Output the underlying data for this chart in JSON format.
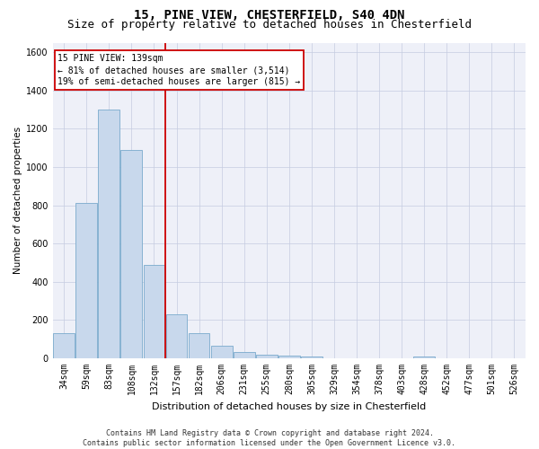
{
  "title": "15, PINE VIEW, CHESTERFIELD, S40 4DN",
  "subtitle": "Size of property relative to detached houses in Chesterfield",
  "xlabel": "Distribution of detached houses by size in Chesterfield",
  "ylabel": "Number of detached properties",
  "categories": [
    "34sqm",
    "59sqm",
    "83sqm",
    "108sqm",
    "132sqm",
    "157sqm",
    "182sqm",
    "206sqm",
    "231sqm",
    "255sqm",
    "280sqm",
    "305sqm",
    "329sqm",
    "354sqm",
    "378sqm",
    "403sqm",
    "428sqm",
    "452sqm",
    "477sqm",
    "501sqm",
    "526sqm"
  ],
  "values": [
    130,
    810,
    1300,
    1090,
    490,
    230,
    130,
    65,
    35,
    20,
    13,
    10,
    0,
    0,
    0,
    0,
    10,
    0,
    0,
    0,
    0
  ],
  "bar_color": "#c8d8ec",
  "bar_edge_color": "#7aaacc",
  "vline_color": "#cc0000",
  "vline_x": 4.5,
  "annotation_line1": "15 PINE VIEW: 139sqm",
  "annotation_line2": "← 81% of detached houses are smaller (3,514)",
  "annotation_line3": "19% of semi-detached houses are larger (815) →",
  "annotation_box_facecolor": "#ffffff",
  "annotation_box_edgecolor": "#cc0000",
  "ylim": [
    0,
    1650
  ],
  "yticks": [
    0,
    200,
    400,
    600,
    800,
    1000,
    1200,
    1400,
    1600
  ],
  "footer_text": "Contains HM Land Registry data © Crown copyright and database right 2024.\nContains public sector information licensed under the Open Government Licence v3.0.",
  "bg_color": "#eef0f8",
  "grid_color": "#c5cce0",
  "title_fontsize": 10,
  "subtitle_fontsize": 9,
  "tick_fontsize": 7,
  "ylabel_fontsize": 7.5,
  "xlabel_fontsize": 8,
  "annotation_fontsize": 7,
  "footer_fontsize": 6
}
